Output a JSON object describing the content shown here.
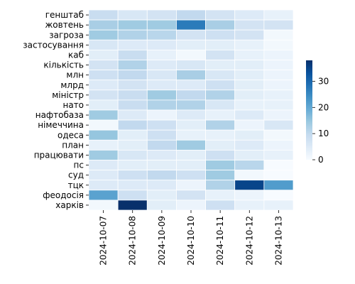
{
  "chart_data": {
    "type": "heatmap",
    "title": "",
    "xlabel": "",
    "ylabel": "",
    "x": [
      "2024-10-07",
      "2024-10-08",
      "2024-10-09",
      "2024-10-10",
      "2024-10-11",
      "2024-10-12",
      "2024-10-13"
    ],
    "y": [
      "генштаб",
      "жовтень",
      "загроза",
      "застосування",
      "каб",
      "кількість",
      "млн",
      "млрд",
      "міністр",
      "нато",
      "нафтобаза",
      "німеччина",
      "одеса",
      "план",
      "працювати",
      "пс",
      "суд",
      "тцк",
      "феодосія",
      "харків"
    ],
    "values": [
      [
        9,
        6,
        7,
        10,
        7,
        5,
        3
      ],
      [
        13,
        14,
        14,
        27,
        13,
        7,
        7
      ],
      [
        14,
        12,
        11,
        7,
        8,
        7,
        1
      ],
      [
        6,
        5,
        5,
        4,
        4,
        3,
        1
      ],
      [
        4,
        9,
        3,
        1,
        7,
        3,
        2
      ],
      [
        7,
        12,
        5,
        6,
        4,
        4,
        2
      ],
      [
        8,
        10,
        6,
        13,
        6,
        4,
        2
      ],
      [
        5,
        7,
        5,
        5,
        8,
        4,
        2
      ],
      [
        7,
        9,
        14,
        10,
        12,
        4,
        3
      ],
      [
        4,
        9,
        12,
        12,
        6,
        3,
        3
      ],
      [
        14,
        5,
        2,
        5,
        3,
        5,
        2
      ],
      [
        1,
        10,
        8,
        4,
        12,
        2,
        6
      ],
      [
        15,
        4,
        8,
        3,
        3,
        4,
        1
      ],
      [
        3,
        4,
        10,
        14,
        4,
        5,
        2
      ],
      [
        14,
        6,
        5,
        4,
        8,
        4,
        3
      ],
      [
        5,
        4,
        4,
        4,
        14,
        11,
        0
      ],
      [
        5,
        8,
        10,
        8,
        14,
        1,
        0
      ],
      [
        5,
        5,
        5,
        2,
        12,
        35,
        22
      ],
      [
        21,
        8,
        4,
        7,
        3,
        2,
        0
      ],
      [
        1,
        38,
        4,
        2,
        8,
        3,
        3
      ]
    ],
    "colorbar": {
      "min": 0,
      "max": 38,
      "ticks": [
        0,
        10,
        20,
        30
      ]
    },
    "colormap": "Blues",
    "grid": false,
    "legend": "colorbar-right"
  }
}
